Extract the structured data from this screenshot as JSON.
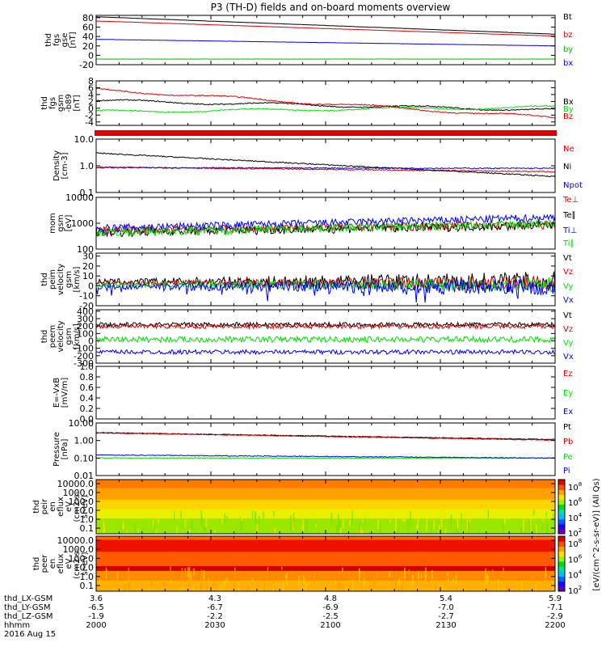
{
  "title": "P3 (TH-D) fields and on-board moments overview",
  "footer": {
    "row_labels": [
      "thd_LX-GSM",
      "thd_LY-GSM",
      "thd_LZ-GSM",
      "hhmm",
      "2016 Aug 15"
    ],
    "columns": [
      {
        "lx": "3.6",
        "ly": "-6.5",
        "lz": "-1.9",
        "hhmm": "2000"
      },
      {
        "lx": "4.3",
        "ly": "-6.7",
        "lz": "-2.2",
        "hhmm": "2030"
      },
      {
        "lx": "4.8",
        "ly": "-6.9",
        "lz": "-2.5",
        "hhmm": "2100"
      },
      {
        "lx": "5.4",
        "ly": "-7.0",
        "lz": "-2.7",
        "hhmm": "2130"
      },
      {
        "lx": "5.9",
        "ly": "-7.1",
        "lz": "-2.9",
        "hhmm": "2200"
      }
    ]
  },
  "colorbar": {
    "label": "[eV/(cm^2-s-sr-eV)] (All Qs)",
    "upper_ticks": [
      "10^8",
      "10^6",
      "10^4",
      "10^2"
    ],
    "lower_ticks": [
      "10^8",
      "10^6",
      "10^4",
      "10^2"
    ]
  },
  "colors": {
    "black": "#000000",
    "red": "#e00000",
    "green": "#00e000",
    "blue": "#0000ff"
  },
  "chart_data": [
    {
      "type": "line",
      "ylabel": [
        "thd",
        "fgs",
        "gse",
        "[nT]"
      ],
      "yticks": [
        "80",
        "60",
        "40",
        "20",
        "0",
        "-20"
      ],
      "ylim": [
        -20,
        85
      ],
      "x_range": [
        "2000",
        "2200"
      ],
      "series": [
        {
          "name": "Bt",
          "color": "#000000",
          "start": 82,
          "end": 45
        },
        {
          "name": "bz",
          "color": "#e00000",
          "start": 73,
          "end": 41
        },
        {
          "name": "by",
          "color": "#00c000",
          "start": -8,
          "end": -8
        },
        {
          "name": "bx",
          "color": "#0000ff",
          "start": 34,
          "end": 20
        }
      ]
    },
    {
      "type": "line",
      "ylabel": [
        "thd",
        "fgs",
        "gsm",
        "-b89",
        "[nT]"
      ],
      "yticks": [
        "8",
        "6",
        "4",
        "2",
        "0",
        "-2",
        "-4"
      ],
      "ylim": [
        -5,
        8
      ],
      "x_range": [
        "2000",
        "2200"
      ],
      "series": [
        {
          "name": "Bx",
          "color": "#000000",
          "start": 2.2,
          "end": -0.5
        },
        {
          "name": "By",
          "color": "#00e000",
          "start": -1.0,
          "end": 0.3
        },
        {
          "name": "Bz",
          "color": "#e00000",
          "start": 5.5,
          "end": -2.8
        }
      ]
    },
    {
      "type": "line",
      "scale": "log",
      "ylabel": [
        "Density",
        "[cm-3]"
      ],
      "yticks": [
        "10.0",
        "1.0",
        "0.1"
      ],
      "ylim": [
        0.1,
        10
      ],
      "x_range": [
        "2000",
        "2200"
      ],
      "series": [
        {
          "name": "Ne",
          "color": "#e00000",
          "start": 0.9,
          "end": 0.6
        },
        {
          "name": "Ni",
          "color": "#000000",
          "start": 3.0,
          "end": 0.4
        },
        {
          "name": "Npot",
          "color": "#0000ff",
          "start": 0.85,
          "end": 0.8
        }
      ]
    },
    {
      "type": "line",
      "scale": "log",
      "ylabel": [
        "mom",
        "gsm",
        "[eV]"
      ],
      "yticks": [
        "10000",
        "1000",
        "100"
      ],
      "ylim": [
        100,
        10000
      ],
      "x_range": [
        "2000",
        "2200"
      ],
      "series": [
        {
          "name": "Te⊥",
          "color": "#e00000",
          "start": 550,
          "end": 900
        },
        {
          "name": "Te∥",
          "color": "#000000",
          "start": 450,
          "end": 850
        },
        {
          "name": "Ti⊥",
          "color": "#0000ff",
          "start": 650,
          "end": 1700
        },
        {
          "name": "Ti∥",
          "color": "#00e000",
          "start": 450,
          "end": 1000
        }
      ]
    },
    {
      "type": "line",
      "ylabel": [
        "thd",
        "peim",
        "velocity",
        "gsm",
        "[km/s]"
      ],
      "yticks": [
        "30",
        "20",
        "10",
        "0",
        "-10",
        "-20"
      ],
      "ylim": [
        -20,
        33
      ],
      "x_range": [
        "2000",
        "2200"
      ],
      "series": [
        {
          "name": "Vt",
          "color": "#000000",
          "mean": 4,
          "spread": 6
        },
        {
          "name": "Vz",
          "color": "#e00000",
          "mean": 3,
          "spread": 4
        },
        {
          "name": "Vy",
          "color": "#00e000",
          "mean": 1,
          "spread": 4
        },
        {
          "name": "Vx",
          "color": "#0000ff",
          "mean": -1,
          "spread": 5
        }
      ]
    },
    {
      "type": "line",
      "ylabel": [
        "thd",
        "peem",
        "velocity",
        "gsm",
        "[km/s]"
      ],
      "yticks": [
        "400",
        "300",
        "200",
        "100",
        "0",
        "-100",
        "-200",
        "-300"
      ],
      "ylim": [
        -300,
        420
      ],
      "x_range": [
        "2000",
        "2200"
      ],
      "series": [
        {
          "name": "Vt",
          "color": "#000000",
          "mean": 220,
          "spread": 30
        },
        {
          "name": "Vz",
          "color": "#e00000",
          "mean": 195,
          "spread": 30
        },
        {
          "name": "Vy",
          "color": "#00e000",
          "mean": 20,
          "spread": 40
        },
        {
          "name": "Vx",
          "color": "#0000ff",
          "mean": -150,
          "spread": 30
        }
      ]
    },
    {
      "type": "line",
      "ylabel": [
        "E=-VxB",
        "[mV/m]"
      ],
      "yticks": [
        "1.0",
        "0.8",
        "0.6",
        "0.4",
        "0.2",
        "0.0"
      ],
      "ylim": [
        0,
        1
      ],
      "x_range": [
        "2000",
        "2200"
      ],
      "series": [
        {
          "name": "Ez",
          "color": "#e00000"
        },
        {
          "name": "Ey",
          "color": "#00e000"
        },
        {
          "name": "Ex",
          "color": "#0000ff"
        }
      ]
    },
    {
      "type": "line",
      "scale": "log",
      "ylabel": [
        "Pressure",
        "[nPa]"
      ],
      "yticks": [
        "10.00",
        "1.00",
        "0.10",
        "0.01"
      ],
      "ylim": [
        0.01,
        10
      ],
      "x_range": [
        "2000",
        "2200"
      ],
      "series": [
        {
          "name": "Pt",
          "color": "#000000",
          "start": 2.8,
          "end": 1.15
        },
        {
          "name": "Pb",
          "color": "#e00000",
          "start": 2.7,
          "end": 1.05
        },
        {
          "name": "Pe",
          "color": "#00e000",
          "start": 0.1,
          "end": 0.1
        },
        {
          "name": "Pi",
          "color": "#0000ff",
          "start": 0.15,
          "end": 0.1
        }
      ]
    },
    {
      "type": "heatmap",
      "ylabel": [
        "thd",
        "peir",
        "en",
        "eflux",
        "eV",
        "(cm2-s-",
        "sr-eV)"
      ],
      "yticks": [
        "10000.0",
        "1000.0",
        "100.0",
        "10.0",
        "1.0",
        "0.1"
      ],
      "ylim": [
        0.1,
        10000
      ],
      "x_range": [
        "2000",
        "2200"
      ]
    },
    {
      "type": "heatmap",
      "ylabel": [
        "thd",
        "peer",
        "en",
        "eflux",
        "eV",
        "(cm2-s-",
        "sr-eV)"
      ],
      "yticks": [
        "10000.0",
        "1000.0",
        "100.0",
        "10.0",
        "1.0",
        "0.1"
      ],
      "ylim": [
        0.1,
        10000
      ],
      "x_range": [
        "2000",
        "2200"
      ]
    }
  ]
}
